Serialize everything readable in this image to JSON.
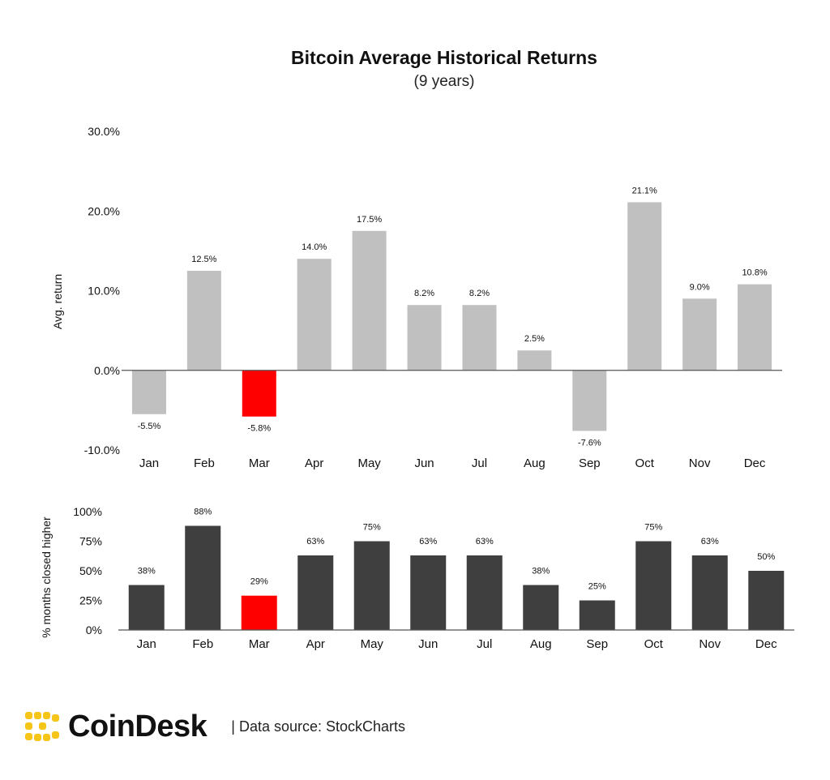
{
  "chart_data": [
    {
      "type": "bar",
      "title": "Bitcoin Average Historical Returns",
      "subtitle": "(9 years)",
      "ylabel": "Avg. return",
      "categories": [
        "Jan",
        "Feb",
        "Mar",
        "Apr",
        "May",
        "Jun",
        "Jul",
        "Aug",
        "Sep",
        "Oct",
        "Nov",
        "Dec"
      ],
      "values": [
        -5.5,
        12.5,
        -5.8,
        14.0,
        17.5,
        8.2,
        8.2,
        2.5,
        -7.6,
        21.1,
        9.0,
        10.8
      ],
      "value_labels": [
        "-5.5%",
        "12.5%",
        "-5.8%",
        "14.0%",
        "17.5%",
        "8.2%",
        "8.2%",
        "2.5%",
        "-7.6%",
        "21.1%",
        "9.0%",
        "10.8%"
      ],
      "y_ticks": [
        "30.0%",
        "20.0%",
        "10.0%",
        "0.0%",
        "-10.0%"
      ],
      "y_tick_values": [
        30,
        20,
        10,
        0,
        -10
      ],
      "ylim": [
        -10,
        30
      ],
      "highlight_category": "Mar",
      "bar_color": "#c0c0c0",
      "highlight_color": "#ff0000",
      "negative_label_color": "#e8242b",
      "grid": false
    },
    {
      "type": "bar",
      "ylabel": "% months closed higher",
      "categories": [
        "Jan",
        "Feb",
        "Mar",
        "Apr",
        "May",
        "Jun",
        "Jul",
        "Aug",
        "Sep",
        "Oct",
        "Nov",
        "Dec"
      ],
      "values": [
        38,
        88,
        29,
        63,
        75,
        63,
        63,
        38,
        25,
        75,
        63,
        50
      ],
      "value_labels": [
        "38%",
        "88%",
        "29%",
        "63%",
        "75%",
        "63%",
        "63%",
        "38%",
        "25%",
        "75%",
        "63%",
        "50%"
      ],
      "y_ticks": [
        "100%",
        "75%",
        "50%",
        "25%",
        "0%"
      ],
      "y_tick_values": [
        100,
        75,
        50,
        25,
        0
      ],
      "ylim": [
        0,
        100
      ],
      "highlight_category": "Mar",
      "bar_color": "#3f3f3f",
      "highlight_color": "#ff0000",
      "grid": false
    }
  ],
  "footer": {
    "brand": "CoinDesk",
    "source": "| Data source: StockCharts",
    "logo_icon": "coindesk-logo-icon",
    "logo_color": "#f5c518"
  }
}
